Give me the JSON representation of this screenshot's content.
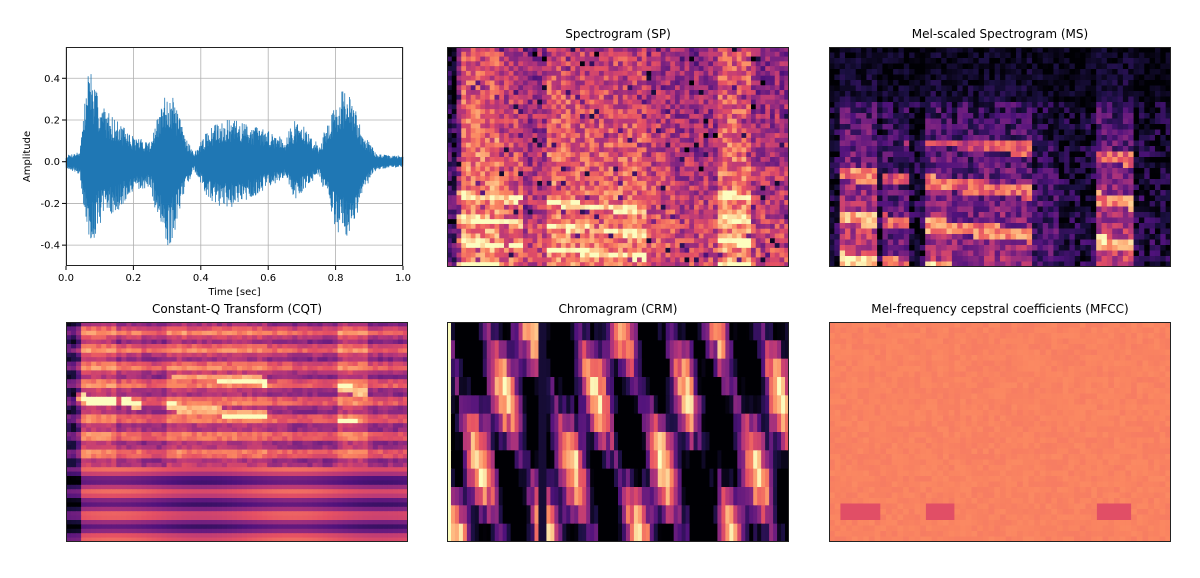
{
  "colors": {
    "waveform": "#1f77b4",
    "grid": "#b0b0b0",
    "magma_dark": "#000004",
    "magma_purple": "#51127c",
    "magma_magenta": "#b73779",
    "magma_orange": "#fc8961",
    "magma_light": "#fcfdbf",
    "mfcc_base": "#e98a67"
  },
  "chart_data": [
    {
      "type": "line",
      "id": "waveform",
      "title": "",
      "xlabel": "Time [sec]",
      "ylabel": "Amplitude",
      "xlim": [
        0.0,
        1.0
      ],
      "ylim": [
        -0.5,
        0.55
      ],
      "x_ticks": [
        "0.0",
        "0.2",
        "0.4",
        "0.6",
        "0.8",
        "1.0"
      ],
      "y_ticks": [
        "0.4",
        "0.2",
        "0.0",
        "-0.2",
        "-0.4"
      ],
      "x_tick_values": [
        0.0,
        0.2,
        0.4,
        0.6,
        0.8,
        1.0
      ],
      "y_tick_values": [
        0.4,
        0.2,
        0.0,
        -0.2,
        -0.4
      ],
      "grid": true,
      "envelope": {
        "x": [
          0.0,
          0.04,
          0.06,
          0.07,
          0.08,
          0.1,
          0.12,
          0.15,
          0.2,
          0.25,
          0.28,
          0.3,
          0.32,
          0.35,
          0.38,
          0.42,
          0.46,
          0.5,
          0.55,
          0.6,
          0.65,
          0.68,
          0.7,
          0.75,
          0.8,
          0.82,
          0.84,
          0.86,
          0.88,
          0.92,
          0.96,
          1.0
        ],
        "upper": [
          0.03,
          0.05,
          0.35,
          0.51,
          0.38,
          0.3,
          0.25,
          0.2,
          0.12,
          0.1,
          0.25,
          0.35,
          0.3,
          0.15,
          0.04,
          0.15,
          0.2,
          0.2,
          0.18,
          0.15,
          0.12,
          0.2,
          0.18,
          0.08,
          0.28,
          0.35,
          0.32,
          0.25,
          0.15,
          0.04,
          0.03,
          0.03
        ],
        "lower": [
          -0.03,
          -0.06,
          -0.3,
          -0.45,
          -0.38,
          -0.3,
          -0.25,
          -0.25,
          -0.15,
          -0.12,
          -0.35,
          -0.46,
          -0.35,
          -0.15,
          -0.04,
          -0.18,
          -0.22,
          -0.22,
          -0.18,
          -0.12,
          -0.08,
          -0.18,
          -0.15,
          -0.06,
          -0.32,
          -0.38,
          -0.35,
          -0.28,
          -0.15,
          -0.04,
          -0.03,
          -0.03
        ]
      }
    },
    {
      "type": "heatmap",
      "id": "sp",
      "title": "Spectrogram (SP)",
      "colormap": "magma"
    },
    {
      "type": "heatmap",
      "id": "ms",
      "title": "Mel-scaled Spectrogram (MS)",
      "colormap": "magma"
    },
    {
      "type": "heatmap",
      "id": "cqt",
      "title": "Constant-Q Transform (CQT)",
      "colormap": "magma"
    },
    {
      "type": "heatmap",
      "id": "crm",
      "title": "Chromagram (CRM)",
      "colormap": "magma"
    },
    {
      "type": "heatmap",
      "id": "mfcc",
      "title": "Mel-frequency cepstral coefficients (MFCC)",
      "colormap": "magma"
    }
  ]
}
